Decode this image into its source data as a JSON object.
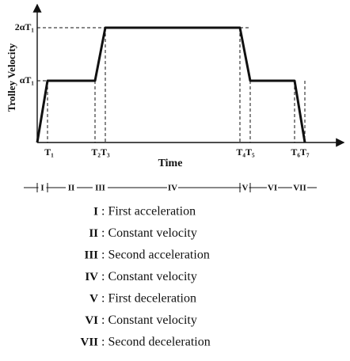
{
  "diagram": {
    "y_axis_label": "Trolley Velocity",
    "x_axis_label": "Time",
    "y_labels": [
      "αT₁",
      "2αT₁"
    ],
    "x_labels": [
      "T₁",
      "T₂T₃",
      "T₄T₅",
      "T₆T₇"
    ],
    "phases": [
      "I",
      "II",
      "III",
      "IV",
      "V",
      "VI",
      "VII"
    ],
    "legend": [
      {
        "numeral": "I",
        "text": ": First acceleration"
      },
      {
        "numeral": "II",
        "text": ": Constant velocity"
      },
      {
        "numeral": "III",
        "text": ": Second acceleration"
      },
      {
        "numeral": "IV",
        "text": ": Constant velocity"
      },
      {
        "numeral": "V",
        "text": ": First deceleration"
      },
      {
        "numeral": "VI",
        "text": ": Constant velocity"
      },
      {
        "numeral": "VII",
        "text": ": Second deceleration"
      }
    ]
  }
}
